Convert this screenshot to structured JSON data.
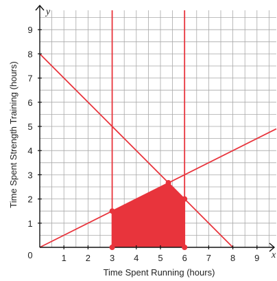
{
  "chart_data": {
    "type": "line",
    "xlabel": "Time Spent Running (hours)",
    "ylabel": "Time Spent Strength Training (hours)",
    "x_var": "x",
    "y_var": "y",
    "origin_label": "0",
    "xlim": [
      0,
      9.8
    ],
    "ylim": [
      0,
      9.8
    ],
    "x_ticks": [
      "1",
      "2",
      "3",
      "4",
      "5",
      "6",
      "7",
      "8",
      "9"
    ],
    "y_ticks": [
      "1",
      "2",
      "3",
      "4",
      "5",
      "6",
      "7",
      "8",
      "9"
    ],
    "grid": true,
    "grid_minor_step": 0.5,
    "lines": [
      {
        "from": [
          0,
          8
        ],
        "to": [
          8,
          0
        ]
      },
      {
        "from": [
          0,
          0
        ],
        "to": [
          9.8,
          4.9
        ]
      },
      {
        "vertical_x": 3
      },
      {
        "vertical_x": 6
      }
    ],
    "feasible_region": [
      [
        3,
        0
      ],
      [
        3,
        1.5
      ],
      [
        5.33,
        2.67
      ],
      [
        6,
        2
      ],
      [
        6,
        0
      ]
    ],
    "vertices": [
      [
        3,
        0
      ],
      [
        3,
        1.5
      ],
      [
        5.33,
        2.67
      ],
      [
        6,
        2
      ],
      [
        6,
        0
      ]
    ],
    "colors": {
      "line": "#e8343c",
      "region": "#e8343c",
      "grid": "#a8a8a8",
      "axis": "#111111"
    }
  }
}
